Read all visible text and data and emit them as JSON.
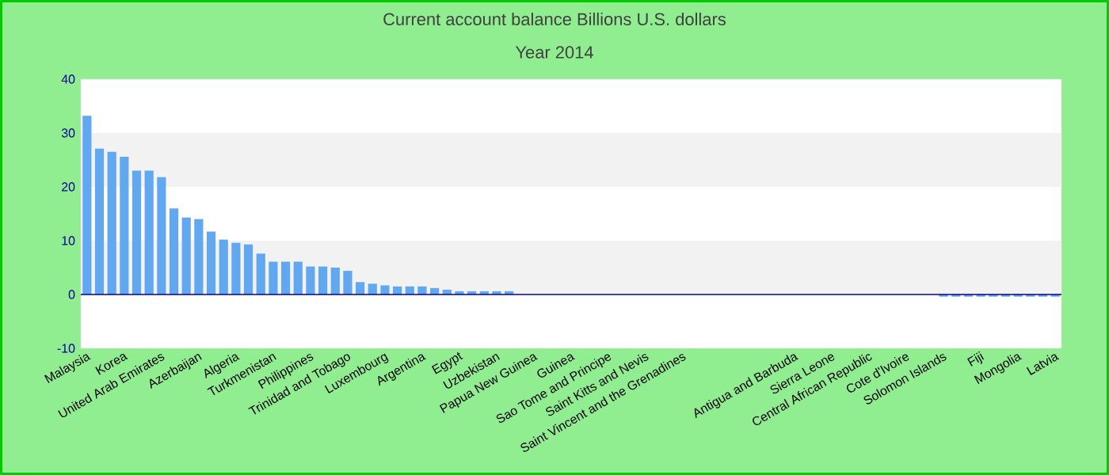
{
  "chart_data": {
    "type": "bar",
    "title": "Current account balance Billions U.S. dollars",
    "subtitle": "Year 2014",
    "categories": [
      "Malaysia",
      null,
      null,
      "Korea",
      null,
      null,
      "United Arab Emirates",
      null,
      null,
      "Azerbaijan",
      null,
      null,
      "Algeria",
      null,
      null,
      "Turkmenistan",
      null,
      null,
      "Philippines",
      null,
      null,
      "Trinidad and Tobago",
      null,
      null,
      "Luxembourg",
      null,
      null,
      "Argentina",
      null,
      null,
      "Egypt",
      null,
      null,
      "Uzbekistan",
      null,
      null,
      "Papua New Guinea",
      null,
      null,
      "Guinea",
      null,
      null,
      "Sao Tome and Principe",
      null,
      null,
      "Saint Kitts and Nevis",
      null,
      null,
      "Saint Vincent and the Grenadines",
      null,
      null,
      null,
      null,
      null,
      null,
      null,
      null,
      "Antigua and Barbuda",
      null,
      null,
      "Sierra Leone",
      null,
      null,
      "Central African Republic",
      null,
      null,
      "Cote d'Ivoire",
      null,
      null,
      "Solomon Islands",
      null,
      null,
      "Fiji",
      null,
      null,
      "Mongolia",
      null,
      null,
      "Latvia"
    ],
    "values": [
      33.2,
      27.1,
      26.5,
      25.6,
      23.0,
      23.0,
      21.8,
      16.0,
      14.3,
      14.0,
      11.7,
      10.2,
      9.6,
      9.3,
      7.6,
      6.1,
      6.1,
      6.1,
      5.2,
      5.2,
      5.0,
      4.4,
      2.3,
      2.0,
      1.7,
      1.5,
      1.5,
      1.5,
      1.2,
      0.9,
      0.6,
      0.6,
      0.6,
      0.6,
      0.6,
      0,
      0,
      0,
      0,
      0,
      0,
      0,
      0,
      0,
      0,
      0,
      0,
      0,
      0,
      0,
      0,
      0,
      0,
      0,
      0,
      0,
      0,
      0,
      0,
      0,
      0,
      0,
      0,
      0,
      0,
      0,
      0,
      0,
      0,
      -0.4,
      -0.4,
      -0.4,
      -0.4,
      -0.4,
      -0.4,
      -0.4,
      -0.4,
      -0.4,
      -0.4
    ],
    "color": "#62a8f0",
    "ylim": [
      -10,
      40
    ],
    "yticks": [
      -10,
      0,
      10,
      20,
      30,
      40
    ],
    "bands": [
      {
        "axis": "y",
        "from": 0,
        "to": 10,
        "color": "#f2f2f2"
      },
      {
        "axis": "y",
        "from": 20,
        "to": 30,
        "color": "#f2f2f2"
      }
    ],
    "ref_lines": [
      {
        "axis": "y",
        "value": 0,
        "color": "#000099"
      }
    ]
  }
}
